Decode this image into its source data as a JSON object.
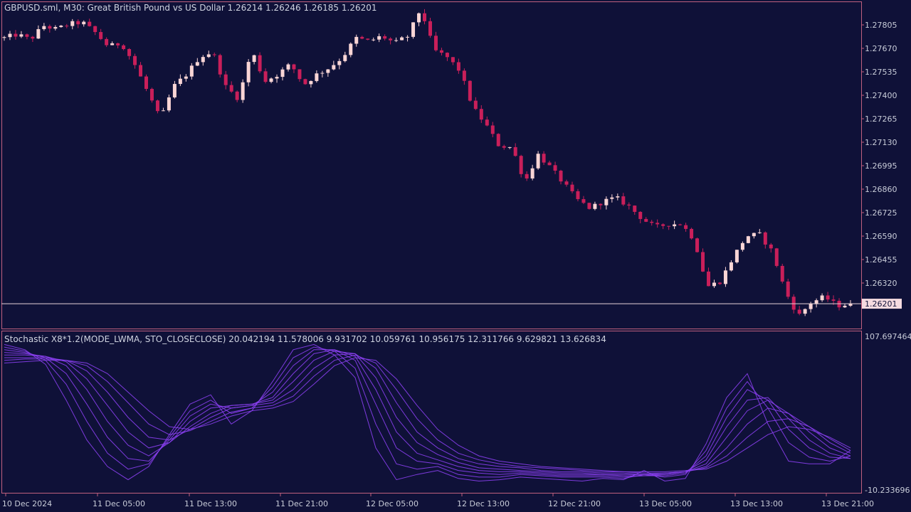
{
  "main_chart": {
    "header": "GBPUSD.sml, M30:  Great British Pound vs US Dollar  1.26214 1.26246 1.26185 1.26201",
    "current_price": 1.26201,
    "current_price_label": "1.26201",
    "price_ticks": [
      "1.27805",
      "1.27670",
      "1.27535",
      "1.27400",
      "1.27265",
      "1.27130",
      "1.26995",
      "1.26860",
      "1.26725",
      "1.26590",
      "1.26455",
      "1.26320"
    ],
    "bull_color": "#f9d5d5",
    "bear_color": "#c91f5a",
    "grid_color": "#c0607e"
  },
  "indicator": {
    "header": "Stochastic X8*1.2(MODE_LWMA, STO_CLOSECLOSE) 20.042194 11.578006 9.931702 10.059761 10.956175 12.311766 9.629821 13.626834",
    "max_label": "107.697464",
    "min_label": "-10.233696",
    "line_color": "#8a3ff0"
  },
  "time_axis": [
    "10 Dec 2024",
    "11 Dec 05:00",
    "11 Dec 13:00",
    "11 Dec 21:00",
    "12 Dec 05:00",
    "12 Dec 13:00",
    "12 Dec 21:00",
    "13 Dec 05:00",
    "13 Dec 13:00",
    "13 Dec 21:00"
  ],
  "chart_data": [
    {
      "type": "candlestick",
      "title": "GBPUSD.sml, M30:  Great British Pound vs US Dollar  1.26214 1.26246 1.26185 1.26201",
      "xlabel": "",
      "ylabel": "",
      "ylim": [
        1.2612,
        1.2791
      ],
      "x": [
        "10 Dec 2024",
        "11 Dec 05:00",
        "11 Dec 13:00",
        "11 Dec 21:00",
        "12 Dec 05:00",
        "12 Dec 13:00",
        "12 Dec 21:00",
        "13 Dec 05:00",
        "13 Dec 13:00",
        "13 Dec 21:00"
      ],
      "trajectory": [
        1.2773,
        1.2775,
        1.2772,
        1.278,
        1.2778,
        1.2781,
        1.2782,
        1.2776,
        1.2768,
        1.277,
        1.2758,
        1.2742,
        1.2726,
        1.2745,
        1.2752,
        1.2762,
        1.2765,
        1.2745,
        1.2738,
        1.2766,
        1.2748,
        1.2752,
        1.2758,
        1.2746,
        1.2752,
        1.2756,
        1.2762,
        1.2773,
        1.2771,
        1.2774,
        1.277,
        1.2774,
        1.279,
        1.2766,
        1.2762,
        1.2754,
        1.2733,
        1.2723,
        1.2711,
        1.271,
        1.269,
        1.2706,
        1.2698,
        1.2689,
        1.268,
        1.2675,
        1.2679,
        1.2681,
        1.2676,
        1.2669,
        1.2664,
        1.2666,
        1.2666,
        1.2657,
        1.263,
        1.2633,
        1.2647,
        1.2659,
        1.266,
        1.265,
        1.2627,
        1.2613,
        1.2621,
        1.2624,
        1.2619,
        1.262
      ],
      "current": 1.26201
    },
    {
      "type": "line",
      "title": "Stochastic X8*1.2(MODE_LWMA, STO_CLOSECLOSE) 20.042194 11.578006 9.931702 10.059761 10.956175 12.311766 9.629821 13.626834",
      "ylim": [
        -10.233696,
        107.697464
      ],
      "latest_values": [
        20.042194,
        11.578006,
        9.931702,
        10.059761,
        10.956175,
        12.311766,
        9.629821,
        13.626834
      ],
      "series": [
        {
          "values": [
            100,
            96,
            85,
            58,
            28,
            8,
            -2,
            8,
            32,
            55,
            62,
            40,
            50,
            72,
            96,
            100,
            92,
            75,
            22,
            -2,
            2,
            5,
            -1,
            -3,
            -2,
            0,
            -1,
            -2,
            -3,
            -1,
            -2,
            5,
            -3,
            -1,
            25,
            60,
            78,
            40,
            12,
            10,
            10,
            20
          ]
        },
        {
          "values": [
            98,
            95,
            88,
            70,
            42,
            18,
            6,
            10,
            30,
            50,
            58,
            48,
            52,
            68,
            90,
            98,
            95,
            82,
            40,
            10,
            6,
            8,
            2,
            0,
            0,
            2,
            1,
            0,
            0,
            0,
            -1,
            2,
            0,
            2,
            20,
            52,
            72,
            52,
            26,
            15,
            12,
            16
          ]
        },
        {
          "values": [
            96,
            94,
            90,
            78,
            55,
            30,
            14,
            12,
            28,
            46,
            55,
            52,
            54,
            64,
            84,
            96,
            96,
            88,
            55,
            22,
            12,
            10,
            5,
            3,
            2,
            3,
            2,
            1,
            1,
            1,
            0,
            1,
            1,
            3,
            16,
            45,
            66,
            58,
            36,
            22,
            15,
            14
          ]
        },
        {
          "values": [
            94,
            93,
            91,
            84,
            66,
            42,
            24,
            16,
            26,
            42,
            52,
            54,
            55,
            60,
            78,
            93,
            96,
            91,
            66,
            34,
            18,
            13,
            8,
            5,
            4,
            4,
            3,
            2,
            2,
            2,
            1,
            1,
            2,
            4,
            13,
            38,
            58,
            60,
            44,
            28,
            18,
            14
          ]
        },
        {
          "values": [
            92,
            92,
            91,
            87,
            74,
            54,
            34,
            22,
            26,
            38,
            48,
            54,
            55,
            58,
            72,
            88,
            95,
            93,
            75,
            45,
            26,
            17,
            11,
            7,
            6,
            5,
            4,
            3,
            3,
            2,
            2,
            2,
            2,
            4,
            10,
            30,
            50,
            58,
            48,
            34,
            22,
            16
          ]
        },
        {
          "values": [
            90,
            90,
            90,
            88,
            80,
            64,
            45,
            30,
            28,
            36,
            45,
            52,
            54,
            56,
            66,
            82,
            92,
            93,
            82,
            56,
            34,
            22,
            14,
            10,
            8,
            7,
            5,
            4,
            4,
            3,
            3,
            2,
            3,
            4,
            8,
            22,
            40,
            52,
            48,
            38,
            26,
            18
          ]
        },
        {
          "values": [
            88,
            89,
            89,
            88,
            84,
            72,
            56,
            40,
            32,
            35,
            42,
            49,
            52,
            54,
            61,
            76,
            88,
            92,
            86,
            66,
            44,
            28,
            18,
            13,
            10,
            8,
            7,
            6,
            5,
            4,
            4,
            3,
            3,
            4,
            7,
            16,
            30,
            42,
            44,
            38,
            29,
            20
          ]
        },
        {
          "values": [
            86,
            87,
            88,
            88,
            86,
            78,
            64,
            50,
            38,
            36,
            40,
            46,
            50,
            52,
            57,
            70,
            84,
            90,
            88,
            74,
            54,
            36,
            24,
            16,
            12,
            10,
            8,
            7,
            6,
            5,
            4,
            4,
            4,
            5,
            6,
            12,
            22,
            32,
            38,
            36,
            30,
            22
          ]
        }
      ]
    }
  ]
}
